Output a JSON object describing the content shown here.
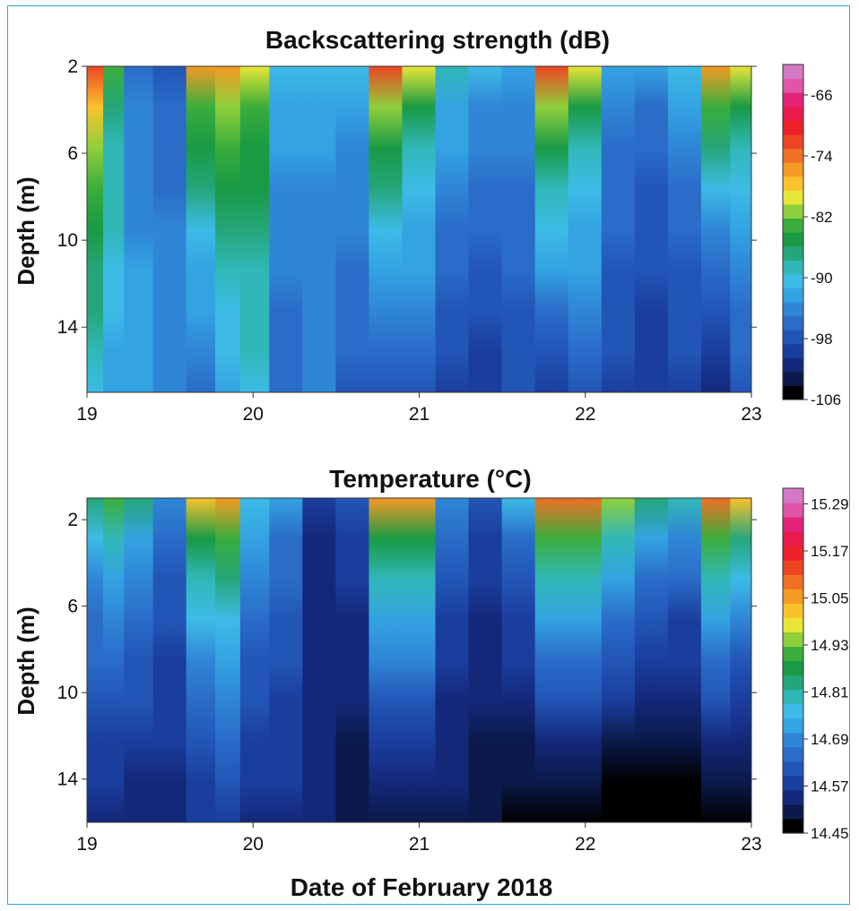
{
  "figure": {
    "xlabel": "Date of February 2018"
  },
  "chart_data": [
    {
      "type": "heatmap",
      "title": "Backscattering strength (dB)",
      "ylabel": "Depth (m)",
      "x_ticks": [
        "19",
        "20",
        "21",
        "22",
        "23"
      ],
      "x_range": [
        19,
        23
      ],
      "y_ticks": [
        "2",
        "6",
        "10",
        "14"
      ],
      "y_range": [
        2,
        17
      ],
      "y_inverted": true,
      "colorbar": {
        "ticks": [
          "-66",
          "-74",
          "-82",
          "-90",
          "-98",
          "-106"
        ],
        "range": [
          -106,
          -62
        ],
        "colors": [
          "#000000",
          "#0b1a4a",
          "#14287a",
          "#1a3e9e",
          "#2256b6",
          "#2a6cc8",
          "#2f86d6",
          "#33a3e2",
          "#3dbbe6",
          "#30b7b8",
          "#25a67a",
          "#199a45",
          "#3aad3c",
          "#8fcf3c",
          "#e8e636",
          "#f9c22c",
          "#f59a25",
          "#f07025",
          "#ed4524",
          "#ec2228",
          "#ea1a4a",
          "#e5227a",
          "#df55a8",
          "#d479c6"
        ]
      },
      "columns": [
        {
          "x": 19.05,
          "top": -72,
          "bottom": -90
        },
        {
          "x": 19.15,
          "top": -84,
          "bottom": -92
        },
        {
          "x": 19.3,
          "top": -96,
          "bottom": -92
        },
        {
          "x": 19.5,
          "top": -97,
          "bottom": -94
        },
        {
          "x": 19.7,
          "top": -76,
          "bottom": -96
        },
        {
          "x": 19.85,
          "top": -76,
          "bottom": -92
        },
        {
          "x": 20.0,
          "top": -80,
          "bottom": -90
        },
        {
          "x": 20.2,
          "top": -90,
          "bottom": -96
        },
        {
          "x": 20.4,
          "top": -91,
          "bottom": -95
        },
        {
          "x": 20.6,
          "top": -90,
          "bottom": -97
        },
        {
          "x": 20.8,
          "top": -73,
          "bottom": -98
        },
        {
          "x": 21.0,
          "top": -80,
          "bottom": -97
        },
        {
          "x": 21.2,
          "top": -88,
          "bottom": -99
        },
        {
          "x": 21.4,
          "top": -90,
          "bottom": -100
        },
        {
          "x": 21.6,
          "top": -92,
          "bottom": -98
        },
        {
          "x": 21.8,
          "top": -73,
          "bottom": -99
        },
        {
          "x": 22.0,
          "top": -80,
          "bottom": -97
        },
        {
          "x": 22.2,
          "top": -92,
          "bottom": -99
        },
        {
          "x": 22.4,
          "top": -93,
          "bottom": -100
        },
        {
          "x": 22.6,
          "top": -90,
          "bottom": -99
        },
        {
          "x": 22.8,
          "top": -75,
          "bottom": -102
        },
        {
          "x": 22.95,
          "top": -80,
          "bottom": -98
        }
      ]
    },
    {
      "type": "heatmap",
      "title": "Temperature (°C)",
      "ylabel": "Depth (m)",
      "x_ticks": [
        "19",
        "20",
        "21",
        "22",
        "23"
      ],
      "x_range": [
        19,
        23
      ],
      "y_ticks": [
        "2",
        "6",
        "10",
        "14"
      ],
      "y_range": [
        1,
        16
      ],
      "y_inverted": true,
      "colorbar": {
        "ticks": [
          "15.29",
          "15.17",
          "15.05",
          "14.93",
          "14.81",
          "14.69",
          "14.57",
          "14.45"
        ],
        "range": [
          14.45,
          15.33
        ],
        "colors": [
          "#000000",
          "#0b1a4a",
          "#14287a",
          "#1a3e9e",
          "#2256b6",
          "#2a6cc8",
          "#2f86d6",
          "#33a3e2",
          "#3dbbe6",
          "#30b7b8",
          "#25a67a",
          "#199a45",
          "#3aad3c",
          "#8fcf3c",
          "#e8e636",
          "#f9c22c",
          "#f59a25",
          "#f07025",
          "#ed4524",
          "#ec2228",
          "#ea1a4a",
          "#e5227a",
          "#df55a8",
          "#d479c6"
        ]
      },
      "columns": [
        {
          "x": 19.05,
          "top": 14.85,
          "bottom": 14.54
        },
        {
          "x": 19.15,
          "top": 14.9,
          "bottom": 14.54
        },
        {
          "x": 19.3,
          "top": 14.82,
          "bottom": 14.54
        },
        {
          "x": 19.5,
          "top": 14.68,
          "bottom": 14.54
        },
        {
          "x": 19.7,
          "top": 15.0,
          "bottom": 14.56
        },
        {
          "x": 19.85,
          "top": 15.05,
          "bottom": 14.57
        },
        {
          "x": 20.0,
          "top": 14.78,
          "bottom": 14.55
        },
        {
          "x": 20.2,
          "top": 14.72,
          "bottom": 14.55
        },
        {
          "x": 20.4,
          "top": 14.56,
          "bottom": 14.53
        },
        {
          "x": 20.6,
          "top": 14.62,
          "bottom": 14.5
        },
        {
          "x": 20.8,
          "top": 15.05,
          "bottom": 14.5
        },
        {
          "x": 21.0,
          "top": 15.05,
          "bottom": 14.5
        },
        {
          "x": 21.2,
          "top": 14.7,
          "bottom": 14.51
        },
        {
          "x": 21.4,
          "top": 14.62,
          "bottom": 14.5
        },
        {
          "x": 21.6,
          "top": 14.75,
          "bottom": 14.48
        },
        {
          "x": 21.8,
          "top": 15.1,
          "bottom": 14.45
        },
        {
          "x": 22.0,
          "top": 15.1,
          "bottom": 14.45
        },
        {
          "x": 22.2,
          "top": 14.95,
          "bottom": 14.45
        },
        {
          "x": 22.4,
          "top": 14.85,
          "bottom": 14.45
        },
        {
          "x": 22.6,
          "top": 14.8,
          "bottom": 14.45
        },
        {
          "x": 22.8,
          "top": 15.1,
          "bottom": 14.45
        },
        {
          "x": 22.95,
          "top": 15.0,
          "bottom": 14.45
        }
      ]
    }
  ]
}
